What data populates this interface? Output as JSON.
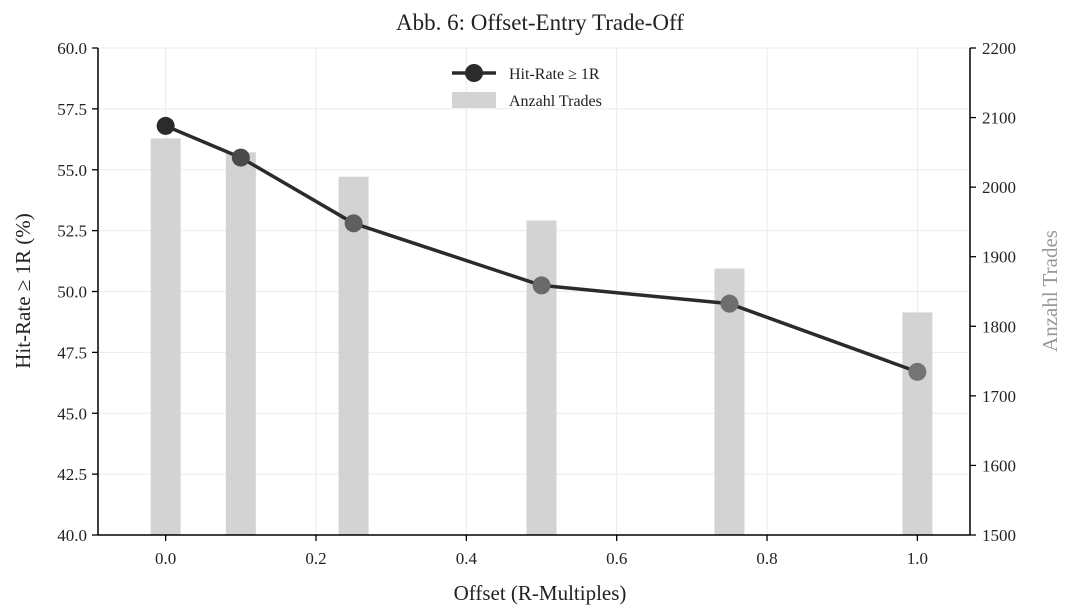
{
  "chart_data": {
    "type": "bar+line",
    "title": "Abb. 6: Offset-Entry Trade-Off",
    "xlabel": "Offset (R-Multiples)",
    "ylabel_left": "Hit-Rate ≥ 1R (%)",
    "ylabel_right": "Anzahl Trades",
    "xlim": [
      -0.09,
      1.07
    ],
    "ylim_left": [
      40.0,
      60.0
    ],
    "ylim_right": [
      1500,
      2200
    ],
    "x_ticks": [
      "0.0",
      "0.2",
      "0.4",
      "0.6",
      "0.8",
      "1.0"
    ],
    "x_tick_values": [
      0.0,
      0.2,
      0.4,
      0.6,
      0.8,
      1.0
    ],
    "y_left_ticks": [
      "40.0",
      "42.5",
      "45.0",
      "47.5",
      "50.0",
      "52.5",
      "55.0",
      "57.5",
      "60.0"
    ],
    "y_left_tick_values": [
      40.0,
      42.5,
      45.0,
      47.5,
      50.0,
      52.5,
      55.0,
      57.5,
      60.0
    ],
    "y_right_ticks": [
      "1500",
      "1600",
      "1700",
      "1800",
      "1900",
      "2000",
      "2100",
      "2200"
    ],
    "y_right_tick_values": [
      1500,
      1600,
      1700,
      1800,
      1900,
      2000,
      2100,
      2200
    ],
    "grid": true,
    "legend_position": "top-center",
    "series": [
      {
        "name": "Hit-Rate ≥ 1R",
        "kind": "line",
        "axis": "left",
        "color": "#2b2b2b",
        "x": [
          0.0,
          0.1,
          0.25,
          0.5,
          0.75,
          1.0
        ],
        "values": [
          56.8,
          55.5,
          52.8,
          50.25,
          49.5,
          46.7
        ]
      },
      {
        "name": "Anzahl Trades",
        "kind": "bar",
        "axis": "right",
        "color": "#d3d3d3",
        "x": [
          0.0,
          0.1,
          0.25,
          0.5,
          0.75,
          1.0
        ],
        "values": [
          2070,
          2050,
          2015,
          1952,
          1883,
          1820
        ]
      }
    ]
  }
}
